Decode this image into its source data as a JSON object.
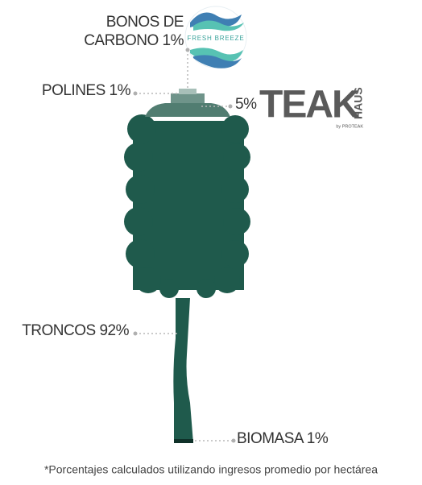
{
  "labels": {
    "bonos": [
      "BONOS DE",
      "CARBONO 1%"
    ],
    "polines": "POLINES 1%",
    "teak_percent": "5%",
    "troncos": "TRONCOS 92%",
    "biomasa": "BIOMASA 1%"
  },
  "logos": {
    "fresh_breeze": {
      "name": "FRESH BREEZE"
    },
    "teak_haus": {
      "name": "TEAK",
      "suffix": "HAUS",
      "byline": "by PROTEAK"
    }
  },
  "footnote": "*Porcentajes calculados utilizando ingresos promedio por hectárea"
}
